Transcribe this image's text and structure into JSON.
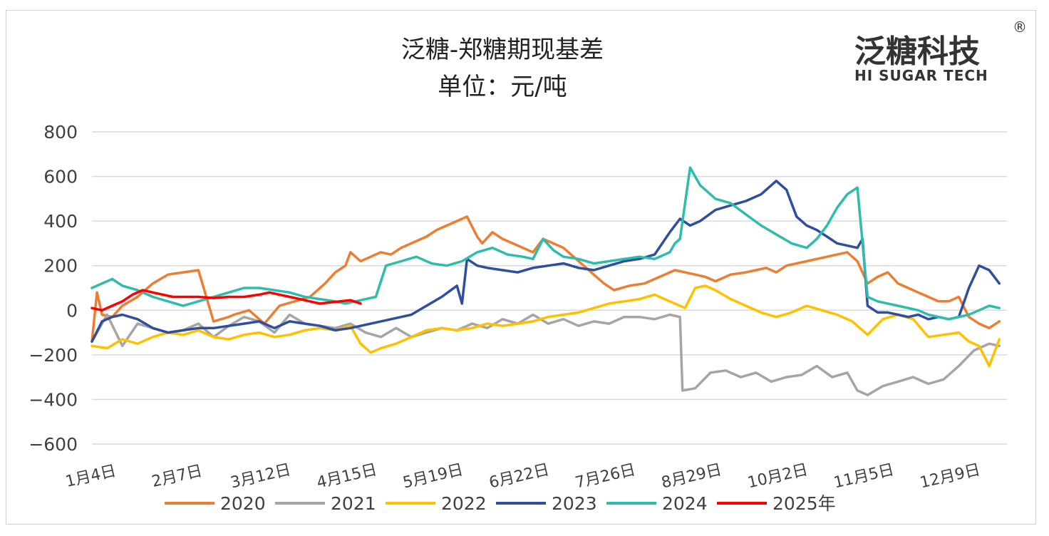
{
  "logo": {
    "main": "泛糖科技",
    "sub": "HI SUGAR TECH",
    "reg": "®"
  },
  "chart_data": {
    "type": "line",
    "title": "泛糖-郑糖期现基差",
    "subtitle": "单位：元/吨",
    "ylim": [
      -600,
      800
    ],
    "yticks": [
      "800",
      "600",
      "400",
      "200",
      "0",
      "−200",
      "−400",
      "−600"
    ],
    "ytick_values": [
      800,
      600,
      400,
      200,
      0,
      -200,
      -400,
      -600
    ],
    "xlim": [
      4,
      365
    ],
    "xticks": [
      {
        "day": 4,
        "label": "1月4日"
      },
      {
        "day": 38,
        "label": "2月7日"
      },
      {
        "day": 71,
        "label": "3月12日"
      },
      {
        "day": 105,
        "label": "4月15日"
      },
      {
        "day": 139,
        "label": "5月19日"
      },
      {
        "day": 173,
        "label": "6月22日"
      },
      {
        "day": 207,
        "label": "7月26日"
      },
      {
        "day": 241,
        "label": "8月29日"
      },
      {
        "day": 275,
        "label": "10月2日"
      },
      {
        "day": 309,
        "label": "11月5日"
      },
      {
        "day": 343,
        "label": "12月9日"
      }
    ],
    "grid": true,
    "legend_position": "bottom",
    "series": [
      {
        "name": "2020",
        "color": "#ED7D31",
        "x": [
          4,
          6,
          8,
          12,
          16,
          22,
          28,
          34,
          40,
          46,
          52,
          58,
          60,
          66,
          72,
          78,
          84,
          90,
          96,
          100,
          104,
          106,
          110,
          114,
          118,
          122,
          126,
          130,
          136,
          140,
          144,
          148,
          152,
          156,
          158,
          162,
          166,
          170,
          174,
          178,
          182,
          186,
          190,
          194,
          198,
          202,
          206,
          210,
          216,
          222,
          228,
          234,
          238,
          242,
          246,
          250,
          256,
          262,
          266,
          270,
          274,
          278,
          282,
          286,
          290,
          294,
          298,
          302,
          306,
          310,
          314,
          318,
          322,
          326,
          330,
          334,
          338,
          342,
          346,
          350,
          354,
          358,
          362
        ],
        "y": [
          -140,
          80,
          -20,
          -30,
          20,
          60,
          120,
          160,
          170,
          180,
          -50,
          -30,
          -20,
          0,
          -60,
          20,
          40,
          60,
          120,
          170,
          200,
          260,
          220,
          240,
          260,
          250,
          280,
          300,
          330,
          360,
          380,
          400,
          420,
          330,
          300,
          350,
          320,
          300,
          280,
          260,
          320,
          300,
          280,
          240,
          200,
          160,
          120,
          90,
          110,
          120,
          150,
          180,
          170,
          160,
          150,
          130,
          160,
          170,
          180,
          190,
          170,
          200,
          210,
          220,
          230,
          240,
          250,
          260,
          220,
          120,
          150,
          170,
          120,
          100,
          80,
          60,
          40,
          40,
          60,
          -30,
          -60,
          -80,
          -50
        ]
      },
      {
        "name": "2021",
        "color": "#A5A5A5",
        "x": [
          4,
          10,
          16,
          22,
          28,
          34,
          40,
          46,
          52,
          58,
          64,
          70,
          76,
          82,
          88,
          94,
          100,
          106,
          112,
          118,
          124,
          130,
          136,
          142,
          148,
          154,
          160,
          166,
          172,
          178,
          184,
          190,
          196,
          202,
          208,
          214,
          220,
          226,
          232,
          236,
          237,
          242,
          248,
          254,
          260,
          266,
          272,
          278,
          284,
          290,
          296,
          302,
          306,
          310,
          316,
          322,
          328,
          334,
          340,
          346,
          352,
          358,
          362
        ],
        "y": [
          -140,
          -20,
          -160,
          -60,
          -80,
          -100,
          -90,
          -60,
          -120,
          -70,
          -30,
          -50,
          -100,
          -20,
          -60,
          -70,
          -80,
          -60,
          -100,
          -120,
          -80,
          -120,
          -100,
          -80,
          -90,
          -60,
          -80,
          -40,
          -60,
          -20,
          -60,
          -40,
          -70,
          -50,
          -60,
          -30,
          -30,
          -40,
          -20,
          -30,
          -360,
          -350,
          -280,
          -270,
          -300,
          -280,
          -320,
          -300,
          -290,
          -250,
          -300,
          -280,
          -360,
          -380,
          -340,
          -320,
          -300,
          -330,
          -310,
          -250,
          -180,
          -150,
          -160
        ]
      },
      {
        "name": "2022",
        "color": "#FFC000",
        "x": [
          4,
          10,
          16,
          22,
          28,
          34,
          40,
          46,
          52,
          58,
          64,
          70,
          76,
          82,
          88,
          94,
          100,
          106,
          110,
          114,
          118,
          124,
          130,
          136,
          142,
          148,
          154,
          160,
          166,
          172,
          178,
          184,
          190,
          196,
          202,
          208,
          214,
          220,
          226,
          232,
          238,
          242,
          246,
          250,
          256,
          262,
          268,
          274,
          280,
          286,
          292,
          298,
          304,
          310,
          316,
          322,
          328,
          334,
          340,
          346,
          350,
          354,
          358,
          362
        ],
        "y": [
          -160,
          -170,
          -130,
          -150,
          -120,
          -100,
          -110,
          -90,
          -120,
          -130,
          -110,
          -100,
          -120,
          -110,
          -90,
          -80,
          -90,
          -70,
          -150,
          -190,
          -170,
          -150,
          -120,
          -90,
          -80,
          -90,
          -80,
          -60,
          -70,
          -60,
          -50,
          -30,
          -20,
          -10,
          10,
          30,
          40,
          50,
          70,
          40,
          10,
          100,
          110,
          90,
          50,
          20,
          -10,
          -30,
          -10,
          20,
          0,
          -20,
          -50,
          -110,
          -40,
          -20,
          -40,
          -120,
          -110,
          -100,
          -140,
          -160,
          -250,
          -130
        ]
      },
      {
        "name": "2023",
        "color": "#2F4E9E",
        "x": [
          4,
          8,
          12,
          16,
          22,
          28,
          34,
          40,
          46,
          52,
          58,
          64,
          70,
          76,
          82,
          88,
          94,
          100,
          106,
          110,
          114,
          118,
          122,
          126,
          130,
          136,
          142,
          148,
          150,
          152,
          156,
          160,
          166,
          172,
          178,
          184,
          190,
          196,
          202,
          208,
          214,
          220,
          226,
          232,
          236,
          240,
          244,
          250,
          256,
          262,
          268,
          274,
          278,
          282,
          286,
          290,
          294,
          298,
          302,
          306,
          308,
          310,
          314,
          318,
          322,
          326,
          330,
          334,
          338,
          342,
          346,
          350,
          354,
          358,
          362
        ],
        "y": [
          -140,
          -50,
          -30,
          -20,
          -40,
          -80,
          -100,
          -90,
          -80,
          -80,
          -70,
          -60,
          -50,
          -80,
          -50,
          -60,
          -70,
          -90,
          -80,
          -70,
          -60,
          -50,
          -40,
          -30,
          -20,
          20,
          60,
          110,
          30,
          230,
          200,
          190,
          180,
          170,
          190,
          200,
          210,
          190,
          180,
          200,
          220,
          230,
          250,
          350,
          410,
          380,
          400,
          450,
          470,
          490,
          520,
          580,
          540,
          420,
          380,
          360,
          330,
          300,
          290,
          280,
          320,
          20,
          -10,
          -10,
          -20,
          -30,
          -20,
          -40,
          -30,
          -40,
          -30,
          100,
          200,
          180,
          120
        ]
      },
      {
        "name": "2024",
        "color": "#2EBDAA",
        "x": [
          4,
          8,
          12,
          16,
          22,
          28,
          34,
          40,
          46,
          52,
          58,
          64,
          70,
          76,
          82,
          88,
          94,
          100,
          104,
          108,
          112,
          116,
          120,
          126,
          132,
          138,
          144,
          150,
          156,
          162,
          168,
          174,
          178,
          182,
          186,
          190,
          196,
          202,
          208,
          214,
          220,
          226,
          232,
          234,
          236,
          240,
          244,
          250,
          256,
          262,
          268,
          274,
          280,
          286,
          290,
          294,
          298,
          302,
          306,
          310,
          314,
          318,
          322,
          326,
          330,
          334,
          338,
          342,
          346,
          350,
          354,
          358,
          362
        ],
        "y": [
          100,
          120,
          140,
          110,
          90,
          60,
          40,
          20,
          40,
          60,
          80,
          100,
          100,
          90,
          80,
          60,
          50,
          40,
          30,
          40,
          50,
          60,
          200,
          220,
          240,
          210,
          200,
          220,
          260,
          280,
          250,
          240,
          230,
          320,
          270,
          240,
          230,
          210,
          220,
          230,
          240,
          230,
          260,
          300,
          320,
          640,
          560,
          500,
          480,
          430,
          380,
          340,
          300,
          280,
          320,
          380,
          460,
          520,
          550,
          60,
          40,
          30,
          20,
          10,
          0,
          -20,
          -30,
          -40,
          -30,
          -20,
          0,
          20,
          10
        ]
      },
      {
        "name": "2025年",
        "color": "#FF0000",
        "x": [
          4,
          8,
          12,
          16,
          20,
          24,
          28,
          32,
          36,
          40,
          46,
          52,
          58,
          64,
          70,
          74,
          78,
          82,
          86,
          90,
          94,
          98,
          102,
          106,
          110
        ],
        "y": [
          10,
          0,
          20,
          40,
          70,
          90,
          80,
          70,
          60,
          60,
          60,
          55,
          60,
          60,
          70,
          80,
          70,
          60,
          50,
          40,
          30,
          35,
          40,
          45,
          30
        ]
      }
    ]
  }
}
